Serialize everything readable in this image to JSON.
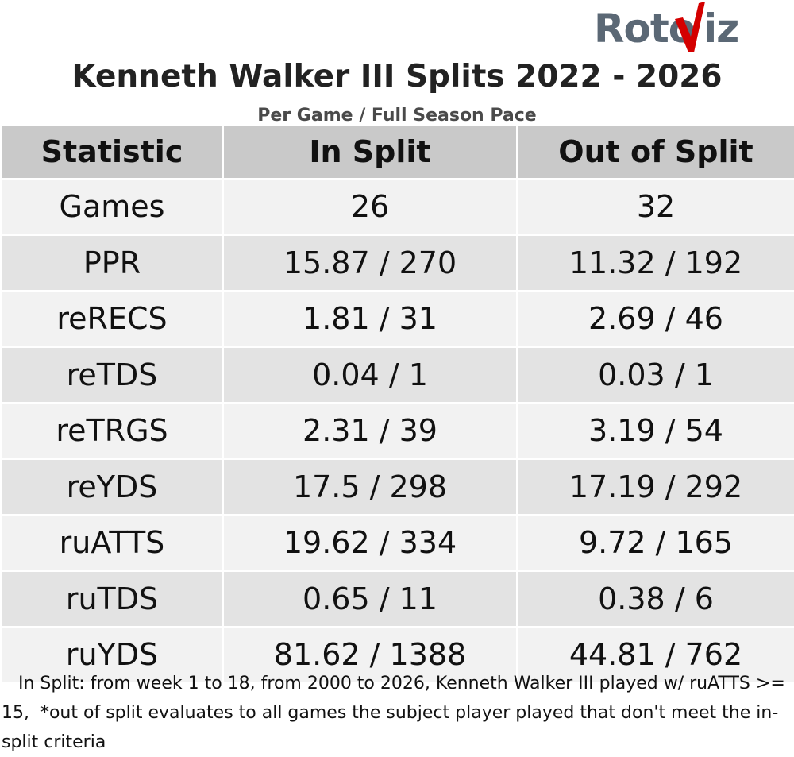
{
  "logo": {
    "left": "Roto",
    "right": "iz",
    "accent_color": "#d40000",
    "text_color": "#5b6875"
  },
  "title": "Kenneth Walker III Splits 2022 - 2026",
  "subtitle": "Per Game / Full Season Pace",
  "table": {
    "headers": [
      "Statistic",
      "In Split",
      "Out of Split"
    ],
    "rows": [
      [
        "Games",
        "26",
        "32"
      ],
      [
        "PPR",
        "15.87 / 270",
        "11.32 / 192"
      ],
      [
        "reRECS",
        "1.81 / 31",
        "2.69 / 46"
      ],
      [
        "reTDS",
        "0.04 / 1",
        "0.03 / 1"
      ],
      [
        "reTRGS",
        "2.31 / 39",
        "3.19 / 54"
      ],
      [
        "reYDS",
        "17.5 / 298",
        "17.19 / 292"
      ],
      [
        "ruATTS",
        "19.62 / 334",
        "9.72 / 165"
      ],
      [
        "ruTDS",
        "0.65 / 11",
        "0.38 / 6"
      ],
      [
        "ruYDS",
        "81.62 / 1388",
        "44.81 / 762"
      ]
    ]
  },
  "footnote": "   In Split: from week 1 to 18, from 2000 to 2026, Kenneth Walker III played w/ ruATTS >= 15,  *out of split evaluates to all games the subject player played that don't meet the in-split criteria"
}
